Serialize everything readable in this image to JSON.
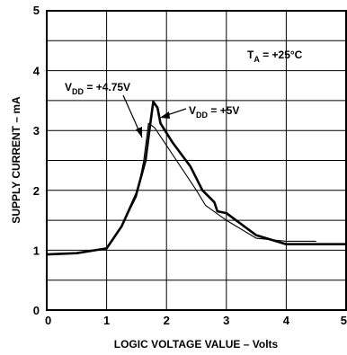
{
  "chart_data": {
    "type": "line",
    "title": "",
    "xlabel": "LOGIC VOLTAGE VALUE – Volts",
    "ylabel": "SUPPLY CURRENT – mA",
    "xlim": [
      0,
      5
    ],
    "ylim": [
      0,
      5
    ],
    "x_ticks": [
      "0",
      "1",
      "2",
      "3",
      "4",
      "5"
    ],
    "y_ticks": [
      "0",
      "1",
      "2",
      "3",
      "4",
      "5"
    ],
    "grid": {
      "major_x_step": 1,
      "minor_y_step": 0.5
    },
    "series": [
      {
        "name": "VDD = +5V",
        "points": [
          [
            0,
            0.93
          ],
          [
            0.5,
            0.95
          ],
          [
            1.0,
            1.03
          ],
          [
            1.25,
            1.4
          ],
          [
            1.5,
            1.95
          ],
          [
            1.65,
            2.5
          ],
          [
            1.72,
            3.05
          ],
          [
            1.78,
            3.48
          ],
          [
            1.85,
            3.38
          ],
          [
            1.9,
            3.12
          ],
          [
            2.1,
            2.8
          ],
          [
            2.4,
            2.4
          ],
          [
            2.6,
            2.0
          ],
          [
            2.8,
            1.8
          ],
          [
            2.85,
            1.65
          ],
          [
            3.0,
            1.62
          ],
          [
            3.5,
            1.25
          ],
          [
            4.0,
            1.1
          ],
          [
            5.0,
            1.1
          ]
        ]
      },
      {
        "name": "VDD = +4.75V",
        "points": [
          [
            0,
            0.93
          ],
          [
            0.5,
            0.95
          ],
          [
            1.0,
            1.03
          ],
          [
            1.25,
            1.4
          ],
          [
            1.5,
            1.9
          ],
          [
            1.62,
            2.5
          ],
          [
            1.7,
            3.12
          ],
          [
            1.8,
            3.05
          ],
          [
            2.0,
            2.75
          ],
          [
            2.3,
            2.3
          ],
          [
            2.5,
            2.0
          ],
          [
            2.65,
            1.75
          ],
          [
            3.0,
            1.5
          ],
          [
            3.5,
            1.2
          ],
          [
            4.0,
            1.15
          ],
          [
            4.5,
            1.15
          ]
        ]
      }
    ],
    "annotations": {
      "ta": {
        "main": "T",
        "sub": "A",
        "rest": " = +25°C"
      },
      "vdd_475": {
        "main": "V",
        "sub": "DD",
        "rest": " = +4.75V"
      },
      "vdd_5": {
        "main": "V",
        "sub": "DD",
        "rest": " = +5V"
      }
    }
  }
}
